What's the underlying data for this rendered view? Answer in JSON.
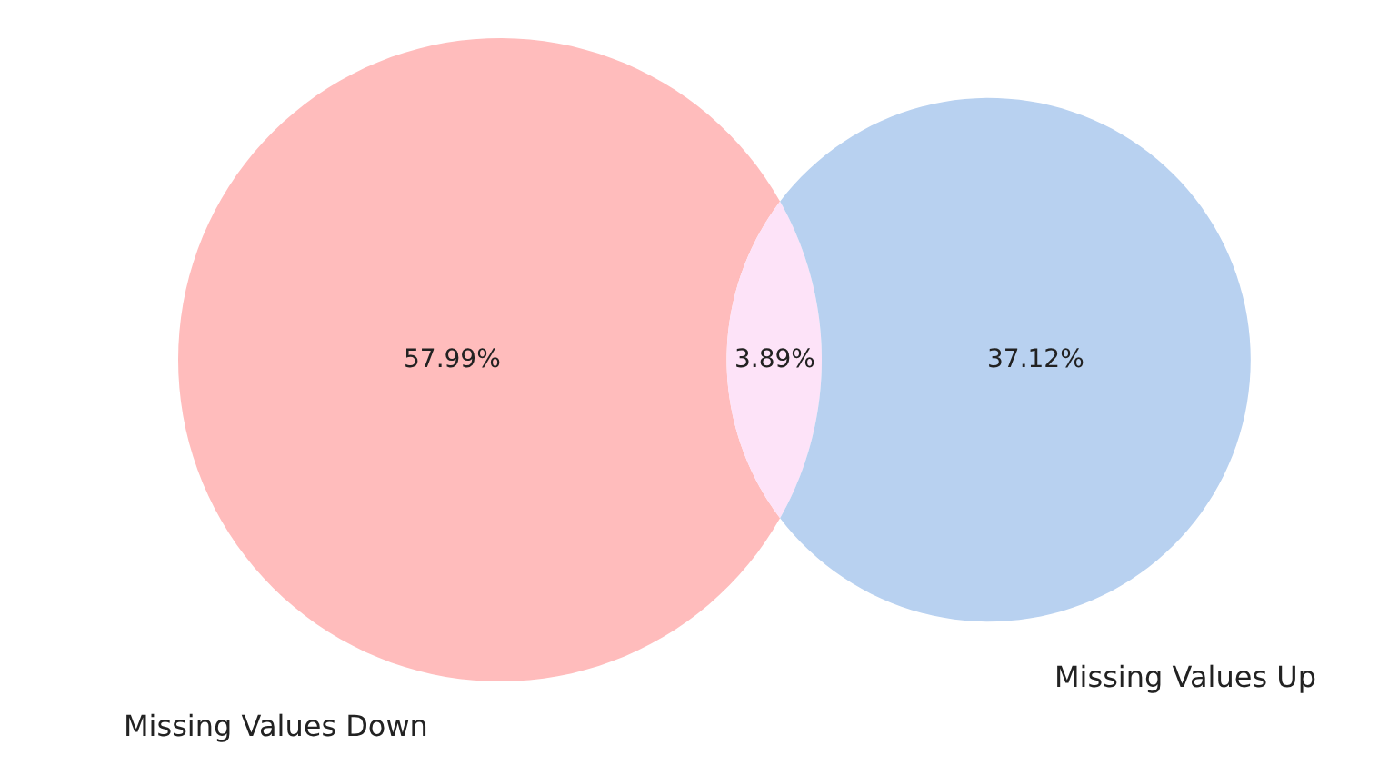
{
  "chart_data": {
    "type": "other",
    "categories": [
      "Missing Values Down",
      null,
      "Missing Values Up"
    ],
    "values": [
      57.99,
      3.89,
      37.12
    ],
    "colors": [
      "#ffbcbc",
      "#fde3f8",
      "#b8d1f0"
    ],
    "value_labels": [
      "57.99%",
      "3.89%",
      "37.12%"
    ]
  }
}
